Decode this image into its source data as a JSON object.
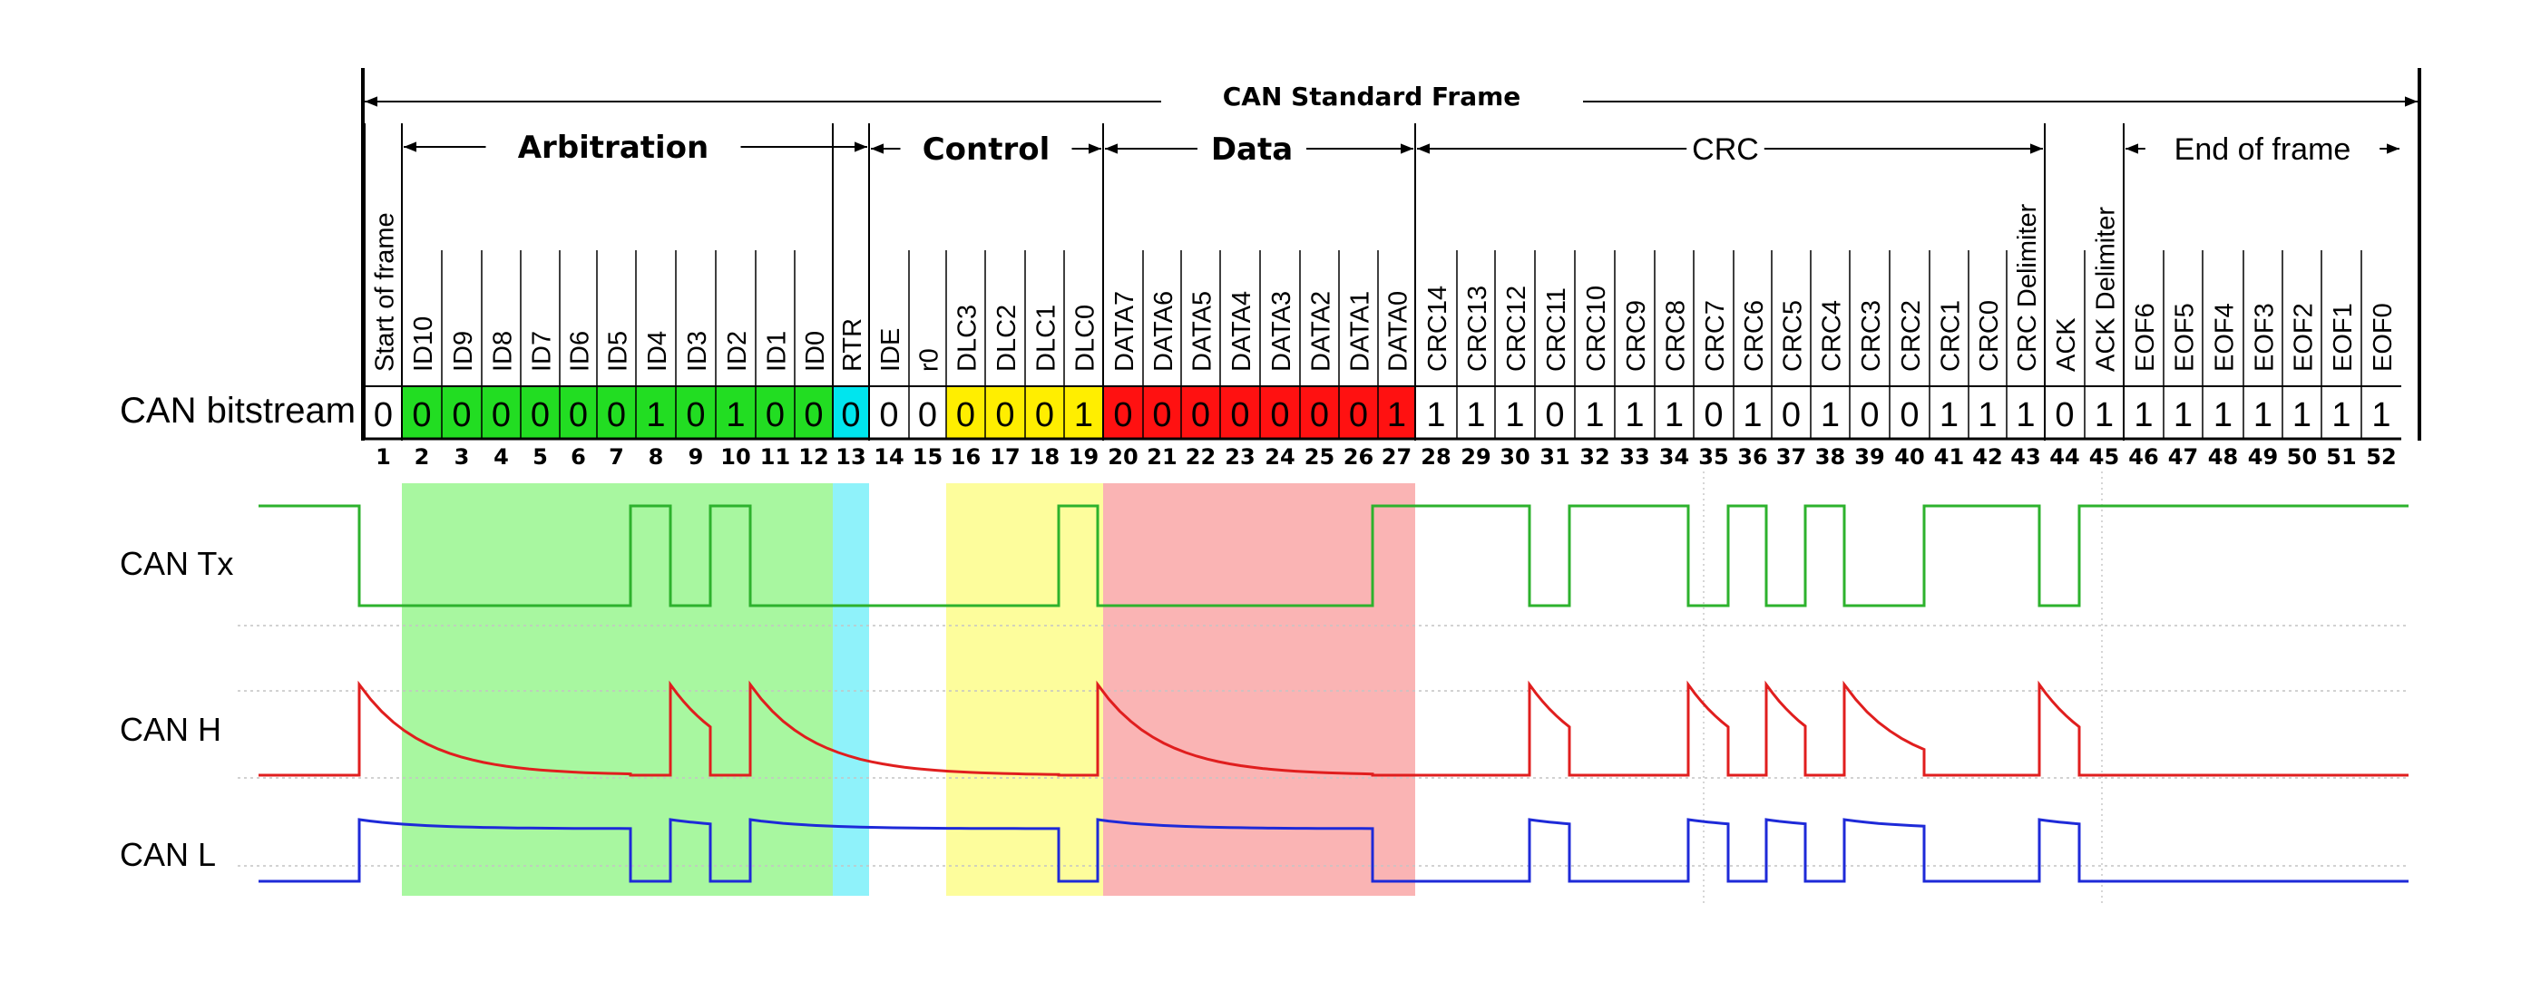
{
  "title": "CAN Standard Frame",
  "sections": [
    {
      "name": "Arbitration",
      "bold": true
    },
    {
      "name": "Control",
      "bold": true
    },
    {
      "name": "Data",
      "bold": true
    },
    {
      "name": "CRC",
      "bold": false
    },
    {
      "name": "End of frame",
      "bold": false
    }
  ],
  "bitstream_label": "CAN bitstream",
  "fields": [
    "Start of frame",
    "ID10",
    "ID9",
    "ID8",
    "ID7",
    "ID6",
    "ID5",
    "ID4",
    "ID3",
    "ID2",
    "ID1",
    "ID0",
    "RTR",
    "IDE",
    "r0",
    "DLC3",
    "DLC2",
    "DLC1",
    "DLC0",
    "DATA7",
    "DATA6",
    "DATA5",
    "DATA4",
    "DATA3",
    "DATA2",
    "DATA1",
    "DATA0",
    "CRC14",
    "CRC13",
    "CRC12",
    "CRC11",
    "CRC10",
    "CRC9",
    "CRC8",
    "CRC7",
    "CRC6",
    "CRC5",
    "CRC4",
    "CRC3",
    "CRC2",
    "CRC1",
    "CRC0",
    "CRC Delimiter",
    "ACK",
    "ACK Delimiter",
    "EOF6",
    "EOF5",
    "EOF4",
    "EOF3",
    "EOF2",
    "EOF1",
    "EOF0"
  ],
  "bits": [
    0,
    0,
    0,
    0,
    0,
    0,
    0,
    1,
    0,
    1,
    0,
    0,
    0,
    0,
    0,
    0,
    0,
    0,
    1,
    0,
    0,
    0,
    0,
    0,
    0,
    0,
    1,
    1,
    1,
    1,
    0,
    1,
    1,
    1,
    0,
    1,
    0,
    1,
    0,
    0,
    1,
    1,
    1,
    0,
    1,
    1,
    1,
    1,
    1,
    1,
    1,
    1
  ],
  "bit_numbers": [
    "1",
    "2",
    "3",
    "4",
    "5",
    "6",
    "7",
    "8",
    "9",
    "10",
    "11",
    "12",
    "13",
    "14",
    "15",
    "16",
    "17",
    "18",
    "19",
    "20",
    "21",
    "22",
    "23",
    "24",
    "25",
    "26",
    "27",
    "28",
    "29",
    "30",
    "31",
    "32",
    "33",
    "34",
    "35",
    "36",
    "37",
    "38",
    "39",
    "40",
    "41",
    "42",
    "43",
    "44",
    "45",
    "46",
    "47",
    "48",
    "49",
    "50",
    "51",
    "52"
  ],
  "field_colors": {
    "id": "#22dd22",
    "rtr": "#00e5ee",
    "dlc": "#ffee00",
    "data": "#ff1111"
  },
  "band_colors": {
    "arbitration": "#a8f7a0",
    "rtr": "#8ff2fa",
    "control": "#fdfd9c",
    "data": "#fab4b4"
  },
  "signals": [
    {
      "name": "CAN Tx",
      "color": "#2db22d"
    },
    {
      "name": "CAN H",
      "color": "#e01e1e"
    },
    {
      "name": "CAN L",
      "color": "#1e2ad8"
    }
  ]
}
